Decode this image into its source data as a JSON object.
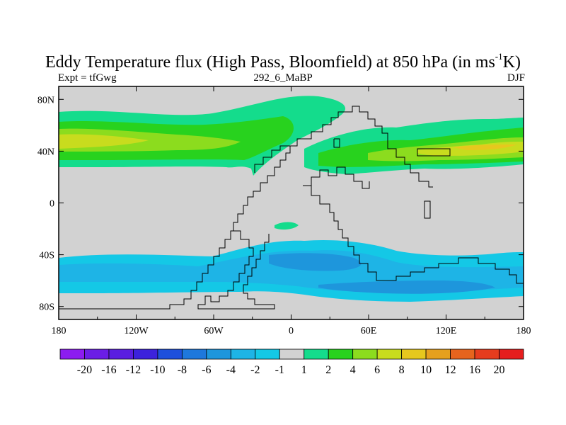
{
  "title": {
    "main_before": "Eddy Temperature flux (High Pass, Bloomfield) at 850 hPa (in ms",
    "superscript": "-1",
    "main_after": "K)"
  },
  "subtitle_left": "Expt = tfGwg",
  "subtitle_center": "292_6_MaBP",
  "subtitle_right": "DJF",
  "map_data": {
    "type": "filled-contour-map",
    "variable": "Eddy temperature flux",
    "units": "ms-1K",
    "level": "850 hPa",
    "season": "DJF",
    "lon_range": [
      -180,
      180
    ],
    "lat_range": [
      -90,
      90
    ],
    "x_ticks": [
      {
        "lon": -180,
        "label": "180"
      },
      {
        "lon": -120,
        "label": "120W"
      },
      {
        "lon": -60,
        "label": "60W"
      },
      {
        "lon": 0,
        "label": "0"
      },
      {
        "lon": 60,
        "label": "60E"
      },
      {
        "lon": 120,
        "label": "120E"
      },
      {
        "lon": 180,
        "label": "180"
      }
    ],
    "y_ticks": [
      {
        "lat": 80,
        "label": "80N"
      },
      {
        "lat": 40,
        "label": "40N"
      },
      {
        "lat": 0,
        "label": "0"
      },
      {
        "lat": -40,
        "label": "40S"
      },
      {
        "lat": -80,
        "label": "80S"
      }
    ],
    "colorbar": {
      "labels": [
        "-20",
        "-16",
        "-12",
        "-10",
        "-8",
        "-6",
        "-4",
        "-2",
        "-1",
        "1",
        "2",
        "4",
        "6",
        "8",
        "10",
        "12",
        "16",
        "20"
      ],
      "colors": [
        "#8c1cf0",
        "#6b1ee6",
        "#5a1ee0",
        "#3c22dc",
        "#1e50dc",
        "#1e78dc",
        "#1e96dc",
        "#1eb4e6",
        "#14c8e6",
        "#d2d2d2",
        "#14dc8c",
        "#28d21e",
        "#8cdc1e",
        "#c8dc1e",
        "#e6c81e",
        "#e6a01e",
        "#e6641e",
        "#e63c1e",
        "#e61e1e"
      ]
    },
    "background_color": "#d2d2d2"
  }
}
